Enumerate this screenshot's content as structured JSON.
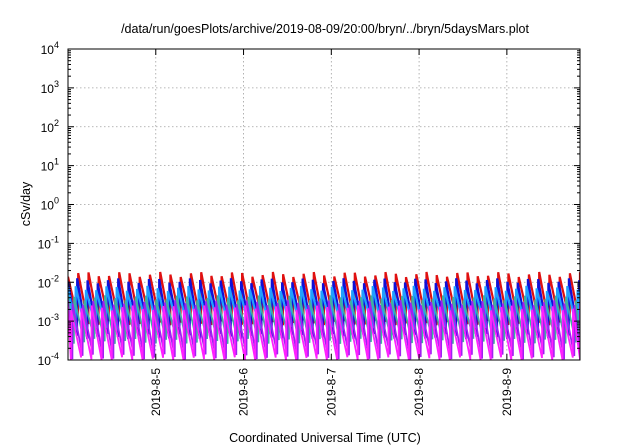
{
  "chart_data": {
    "type": "line",
    "title": "/data/run/goesPlots/archive/2019-08-09/20:00/bryn/../bryn/5daysMars.plot",
    "xlabel": "Coordinated Universal Time (UTC)",
    "ylabel": "cSv/day",
    "y_scale": "log",
    "ylim": [
      0.0001,
      10000
    ],
    "y_ticks": [
      {
        "base": "10",
        "exp": "-4",
        "value": 0.0001
      },
      {
        "base": "10",
        "exp": "-3",
        "value": 0.001
      },
      {
        "base": "10",
        "exp": "-2",
        "value": 0.01
      },
      {
        "base": "10",
        "exp": "-1",
        "value": 0.1
      },
      {
        "base": "10",
        "exp": "0",
        "value": 1
      },
      {
        "base": "10",
        "exp": "1",
        "value": 10
      },
      {
        "base": "10",
        "exp": "2",
        "value": 100
      },
      {
        "base": "10",
        "exp": "3",
        "value": 1000
      },
      {
        "base": "10",
        "exp": "4",
        "value": 10000
      }
    ],
    "xlim": [
      "2019-08-04 00:00",
      "2019-08-09 20:00"
    ],
    "x_ticks": [
      "2019-8-5",
      "2019-8-6",
      "2019-8-7",
      "2019-8-8",
      "2019-8-9"
    ],
    "x_tick_values": [
      "2019-08-05",
      "2019-08-06",
      "2019-08-07",
      "2019-08-08",
      "2019-08-09"
    ],
    "grid": true,
    "sawtooth_period_days": 0.1167,
    "series": [
      {
        "color": "#e01010",
        "low": 0.0009,
        "high": 0.016,
        "phase": 0.0
      },
      {
        "color": "#1010d8",
        "low": 0.0004,
        "high": 0.011,
        "phase": 0.1
      },
      {
        "color": "#20a0ff",
        "low": 0.0006,
        "high": 0.007,
        "phase": 0.25
      },
      {
        "color": "#40b0a0",
        "low": 0.0003,
        "high": 0.004,
        "phase": 0.4
      },
      {
        "color": "#a020f0",
        "low": 0.00012,
        "high": 0.003,
        "phase": 0.55
      },
      {
        "color": "#ff20ff",
        "low": 0.0001,
        "high": 0.0022,
        "phase": 0.7
      }
    ]
  }
}
